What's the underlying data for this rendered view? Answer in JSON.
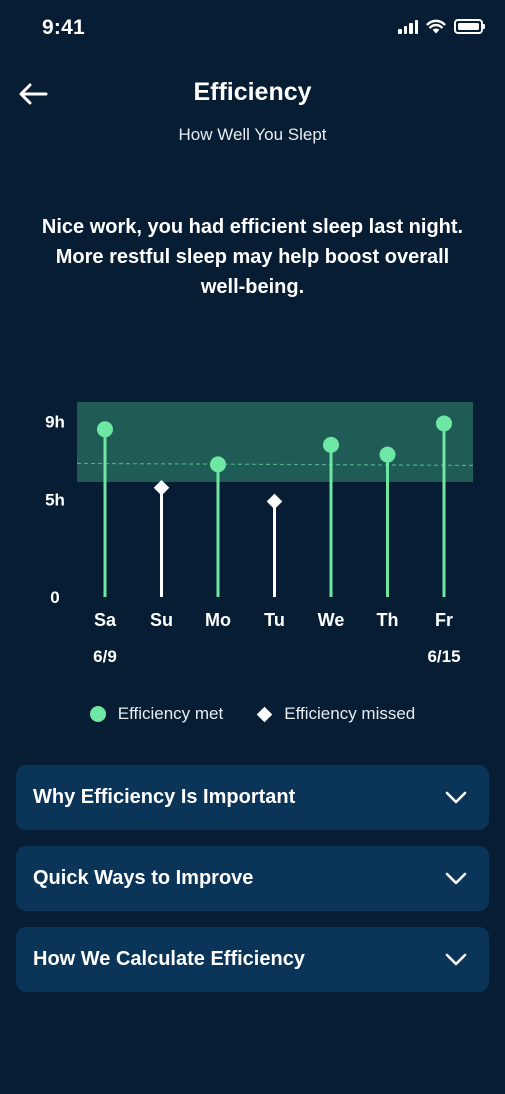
{
  "status_bar": {
    "time": "9:41"
  },
  "header": {
    "title": "Efficiency",
    "subtitle": "How Well You Slept"
  },
  "message": "Nice work, you had efficient sleep last night. More restful sleep may help boost overall well-being.",
  "chart_data": {
    "type": "scatter",
    "categories": [
      "Sa",
      "Su",
      "Mo",
      "Tu",
      "We",
      "Th",
      "Fr"
    ],
    "date_labels": [
      "6/9",
      "",
      "",
      "",
      "",
      "",
      "6/15"
    ],
    "values": [
      8.6,
      5.6,
      6.8,
      4.9,
      7.8,
      7.3,
      8.9
    ],
    "status": [
      "met",
      "missed",
      "met",
      "missed",
      "met",
      "met",
      "met"
    ],
    "y_tick_labels": [
      "9h",
      "5h",
      "0"
    ],
    "y_tick_values": [
      9,
      5,
      0
    ],
    "ylim": [
      0,
      10
    ],
    "target_band": [
      5.9,
      10
    ],
    "target_line": 6.8,
    "colors": {
      "met": "#6ee7a4",
      "missed": "#ffffff",
      "band": "#1f5c56",
      "band_line": "#4fae88"
    }
  },
  "legend": {
    "met_label": "Efficiency met",
    "missed_label": "Efficiency missed"
  },
  "accordions": [
    {
      "label": "Why Efficiency Is Important"
    },
    {
      "label": "Quick Ways to Improve"
    },
    {
      "label": "How We Calculate Efficiency"
    }
  ]
}
